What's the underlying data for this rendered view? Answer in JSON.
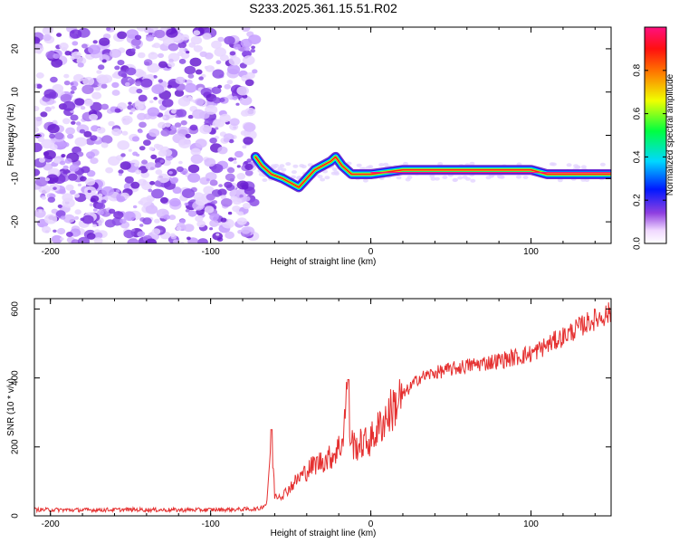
{
  "chart_data": [
    {
      "type": "heatmap",
      "title": "S233.2025.361.15.51.R02",
      "xlabel": "Height of straight line (km)",
      "ylabel": "Frequency (Hz)",
      "xlim": [
        -210,
        150
      ],
      "ylim": [
        -25,
        25
      ],
      "xticks": [
        -200,
        -100,
        0,
        100
      ],
      "yticks": [
        -20,
        -10,
        0,
        10,
        20
      ],
      "colorbar": {
        "label": "Normalized spectral amplitude",
        "range": [
          0,
          1
        ],
        "ticks": [
          0.0,
          0.2,
          0.4,
          0.6,
          0.8
        ]
      },
      "ridge": {
        "description_points_x": [
          -72,
          -68,
          -62,
          -55,
          -50,
          -45,
          -40,
          -35,
          -30,
          -25,
          -22,
          -18,
          -12,
          -5,
          0,
          20,
          60,
          100,
          105,
          110,
          150
        ],
        "frequency_hz": [
          -5,
          -7,
          -9,
          -10,
          -11,
          -12,
          -10,
          -8,
          -7,
          -6,
          -5,
          -7,
          -9,
          -9,
          -9,
          -8,
          -8,
          -8,
          -8.5,
          -9,
          -9
        ]
      },
      "noise_region_x": [
        -210,
        -72
      ]
    },
    {
      "type": "line",
      "xlabel": "Height of straight line (km)",
      "ylabel": "SNR (10 * v/v)",
      "xlim": [
        -210,
        150
      ],
      "ylim": [
        0,
        630
      ],
      "xticks": [
        -200,
        -100,
        0,
        100
      ],
      "yticks": [
        0,
        200,
        400,
        600
      ],
      "color": "#e53030",
      "series": [
        {
          "name": "SNR",
          "x": [
            -210,
            -180,
            -150,
            -120,
            -90,
            -70,
            -65,
            -62,
            -60,
            -55,
            -45,
            -35,
            -25,
            -18,
            -14,
            -13,
            -10,
            0,
            10,
            20,
            30,
            40,
            60,
            80,
            100,
            120,
            135,
            150
          ],
          "y": [
            18,
            17,
            18,
            17,
            18,
            20,
            35,
            230,
            60,
            60,
            110,
            150,
            170,
            210,
            395,
            230,
            200,
            220,
            290,
            350,
            400,
            415,
            435,
            450,
            470,
            520,
            560,
            590
          ]
        }
      ]
    }
  ]
}
